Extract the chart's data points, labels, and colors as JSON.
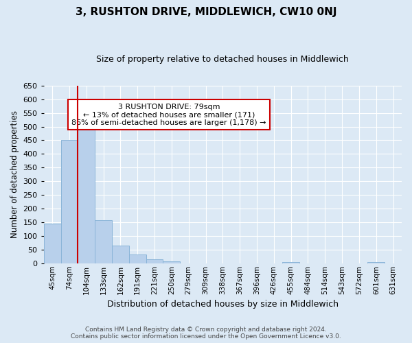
{
  "title": "3, RUSHTON DRIVE, MIDDLEWICH, CW10 0NJ",
  "subtitle": "Size of property relative to detached houses in Middlewich",
  "xlabel": "Distribution of detached houses by size in Middlewich",
  "ylabel": "Number of detached properties",
  "footer_line1": "Contains HM Land Registry data © Crown copyright and database right 2024.",
  "footer_line2": "Contains public sector information licensed under the Open Government Licence v3.0.",
  "categories": [
    "45sqm",
    "74sqm",
    "104sqm",
    "133sqm",
    "162sqm",
    "191sqm",
    "221sqm",
    "250sqm",
    "279sqm",
    "309sqm",
    "338sqm",
    "367sqm",
    "396sqm",
    "426sqm",
    "455sqm",
    "484sqm",
    "514sqm",
    "543sqm",
    "572sqm",
    "601sqm",
    "631sqm"
  ],
  "values": [
    145,
    450,
    507,
    158,
    65,
    32,
    15,
    8,
    0,
    0,
    0,
    0,
    0,
    0,
    5,
    0,
    0,
    0,
    0,
    5,
    0
  ],
  "bar_color": "#b8d0eb",
  "bar_edge_color": "#8ab4d8",
  "background_color": "#dce9f5",
  "grid_color": "#ffffff",
  "ylim": [
    0,
    650
  ],
  "yticks": [
    0,
    50,
    100,
    150,
    200,
    250,
    300,
    350,
    400,
    450,
    500,
    550,
    600,
    650
  ],
  "annotation_title": "3 RUSHTON DRIVE: 79sqm",
  "annotation_line1": "← 13% of detached houses are smaller (171)",
  "annotation_line2": "86% of semi-detached houses are larger (1,178) →",
  "annotation_box_color": "#ffffff",
  "annotation_box_edge": "#cc0000",
  "vline_color": "#cc0000",
  "vline_x_index": 1.5
}
